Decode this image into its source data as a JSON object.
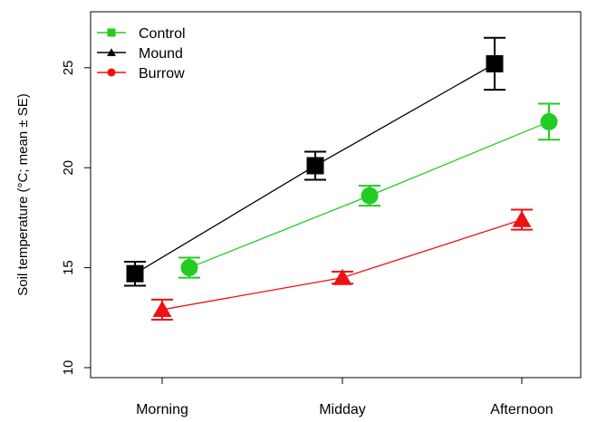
{
  "chart_data": {
    "type": "line",
    "title": "",
    "xlabel": "",
    "ylabel": "Soil temperature (°C; mean ± SE)",
    "categories": [
      "Morning",
      "Midday",
      "Afternoon"
    ],
    "yticks": [
      10,
      15,
      20,
      25
    ],
    "ylim": [
      9.5,
      27.8
    ],
    "grid": false,
    "legend_position": "top-left",
    "legend": [
      {
        "label": "Control",
        "color": "#22cc22",
        "marker": "square"
      },
      {
        "label": "Mound",
        "color": "#000000",
        "marker": "triangle"
      },
      {
        "label": "Burrow",
        "color": "#ee1111",
        "marker": "circle"
      }
    ],
    "series": [
      {
        "color": "#000000",
        "marker": "square",
        "values": [
          14.7,
          20.1,
          25.2
        ],
        "se": [
          0.6,
          0.7,
          1.3
        ]
      },
      {
        "color": "#22cc22",
        "marker": "circle",
        "values": [
          15.0,
          18.6,
          22.3
        ],
        "se": [
          0.5,
          0.5,
          0.9
        ]
      },
      {
        "color": "#ee1111",
        "marker": "triangle",
        "values": [
          12.9,
          14.5,
          17.4
        ],
        "se": [
          0.5,
          0.3,
          0.5
        ]
      }
    ]
  }
}
